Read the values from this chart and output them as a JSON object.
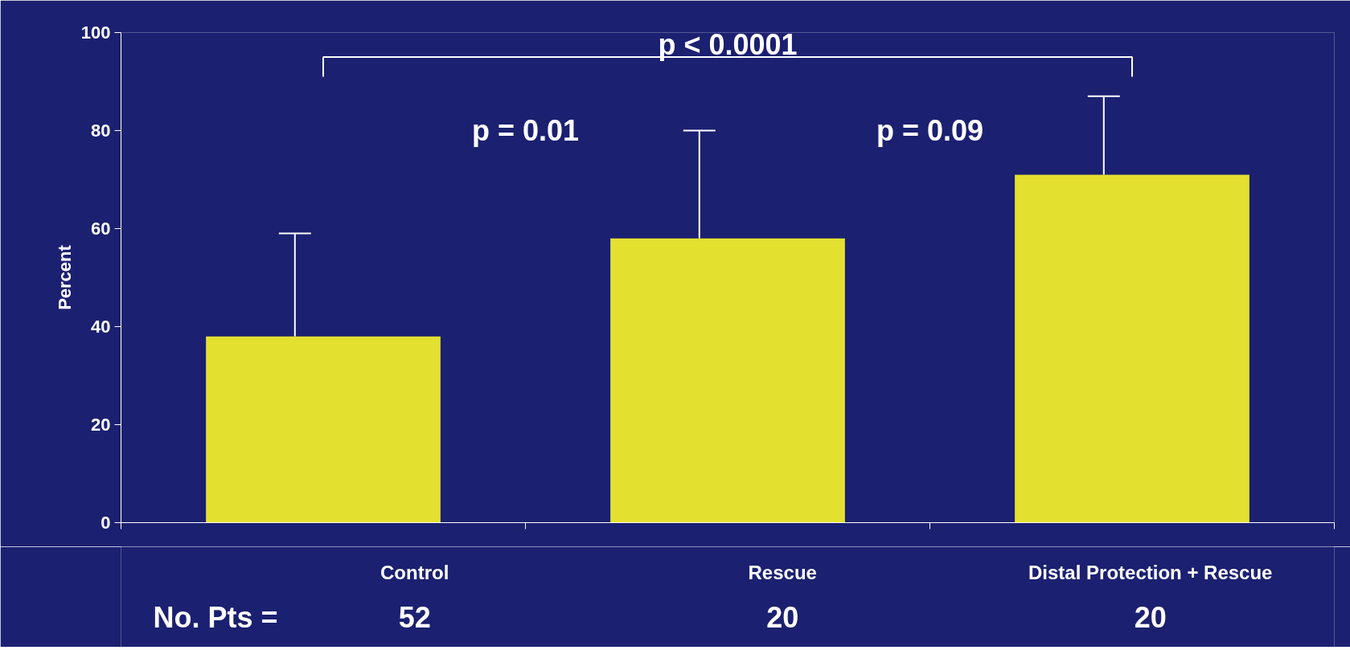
{
  "chart_data": {
    "type": "bar",
    "ylabel": "Percent",
    "categories": [
      "Control",
      "Rescue",
      "Distal Protection + Rescue"
    ],
    "values": [
      38,
      58,
      71
    ],
    "errors": [
      [
        38,
        59
      ],
      [
        58,
        80
      ],
      [
        71,
        87
      ]
    ],
    "color": "#e4e030",
    "ylim": [
      0,
      100
    ],
    "yticks": [
      0,
      20,
      40,
      60,
      80,
      100
    ],
    "grid": false,
    "annotations": [
      "p < 0.0001",
      "p = 0.01",
      "p = 0.09",
      "No. Pts =",
      "52",
      "20",
      "20"
    ]
  }
}
